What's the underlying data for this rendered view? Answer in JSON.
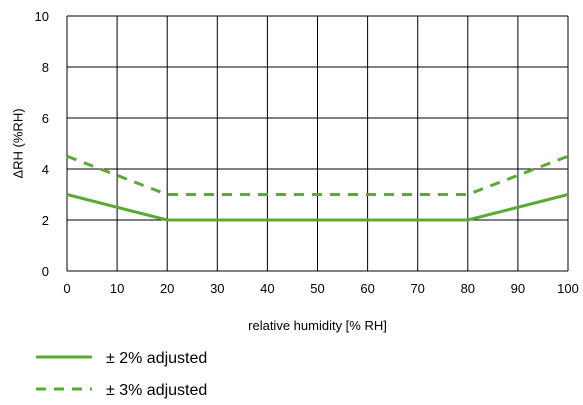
{
  "chart_data": {
    "type": "line",
    "xlabel": "relative humidity [% RH]",
    "ylabel": "ΔRH (%RH)",
    "xlim": [
      0,
      100
    ],
    "ylim": [
      0,
      10
    ],
    "xticks": [
      "0",
      "10",
      "20",
      "30",
      "40",
      "50",
      "60",
      "70",
      "80",
      "90",
      "100"
    ],
    "yticks": [
      "0",
      "2",
      "4",
      "6",
      "8",
      "10"
    ],
    "grid": true,
    "legend_position": "bottom-left",
    "series": [
      {
        "name": "± 2% adjusted",
        "style": "solid",
        "color": "#5aaa33",
        "x": [
          0,
          20,
          80,
          100
        ],
        "y": [
          3,
          2,
          2,
          3
        ]
      },
      {
        "name": "± 3% adjusted",
        "style": "dashed",
        "color": "#5aaa33",
        "x": [
          0,
          20,
          80,
          100
        ],
        "y": [
          4.5,
          3,
          3,
          4.5
        ]
      }
    ]
  }
}
